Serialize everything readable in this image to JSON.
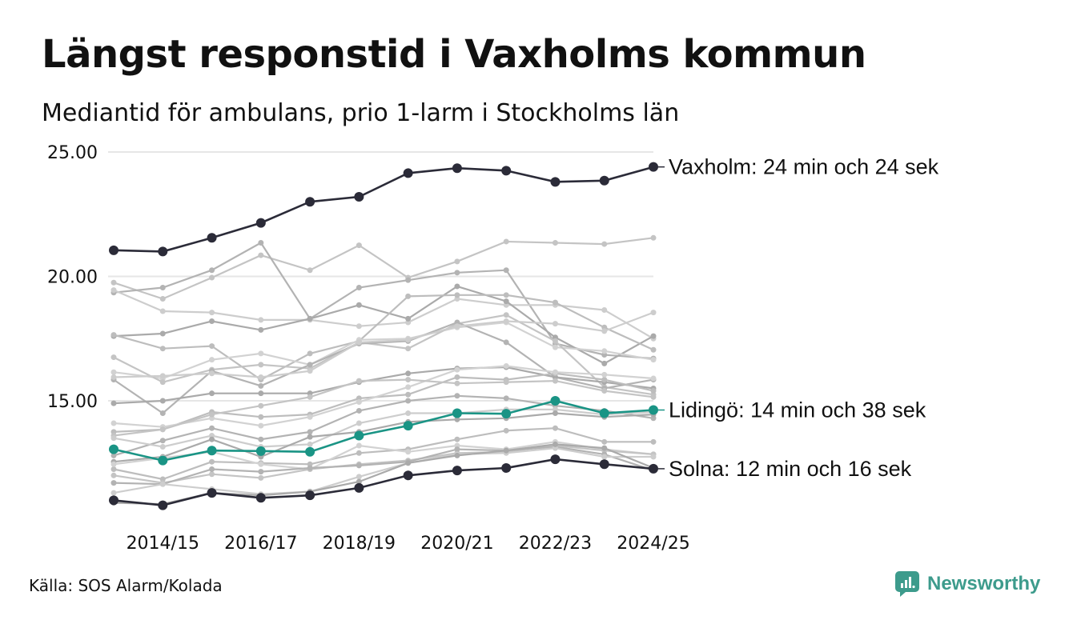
{
  "title": "Längst responstid i Vaxholms kommun",
  "subtitle": "Mediantid för ambulans, prio 1-larm i Stockholms län",
  "source": "Källa: SOS Alarm/Kolada",
  "brand": {
    "name": "Newsworthy",
    "icon": "newsworthy-logo-icon",
    "color": "#3d9b8c"
  },
  "colors": {
    "highlight_dark": "#2b2b38",
    "highlight_teal": "#1a9485",
    "grid": "#e6e6e6"
  },
  "chart_data": {
    "type": "line",
    "title": "Längst responstid i Vaxholms kommun",
    "subtitle": "Mediantid för ambulans, prio 1-larm i Stockholms län",
    "xlabel": "",
    "ylabel": "",
    "x": [
      "2013/14",
      "2014/15",
      "2015/16",
      "2016/17",
      "2017/18",
      "2018/19",
      "2019/20",
      "2020/21",
      "2021/22",
      "2022/23",
      "2023/24",
      "2024/25"
    ],
    "x_tick_labels": [
      "2014/15",
      "2016/17",
      "2018/19",
      "2020/21",
      "2022/23",
      "2024/25"
    ],
    "y_tick_labels": [
      "25.00",
      "20.00",
      "15.00"
    ],
    "y_ticks": [
      25,
      20,
      15
    ],
    "ylim": [
      10.3,
      25.5
    ],
    "grid": true,
    "highlight_series": [
      {
        "name": "Vaxholm",
        "label": "Vaxholm: 24 min och 24 sek",
        "color": "#2b2b38",
        "values": [
          21.05,
          21.0,
          21.55,
          22.15,
          23.0,
          23.2,
          24.15,
          24.35,
          24.25,
          23.8,
          23.85,
          24.4
        ]
      },
      {
        "name": "Lidingö",
        "label": "Lidingö: 14 min och 38 sek",
        "color": "#1a9485",
        "values": [
          13.05,
          12.6,
          13.0,
          12.98,
          12.95,
          13.6,
          14.0,
          14.5,
          14.48,
          15.0,
          14.5,
          14.63
        ]
      },
      {
        "name": "Solna",
        "label": "Solna: 12 min och 16 sek",
        "color": "#2b2b38",
        "values": [
          11.0,
          10.8,
          11.3,
          11.1,
          11.2,
          11.5,
          12.0,
          12.2,
          12.3,
          12.65,
          12.45,
          12.27
        ]
      }
    ],
    "series": [
      {
        "values": [
          19.75,
          19.1,
          19.95,
          20.85,
          20.25,
          21.25,
          19.95,
          20.6,
          21.4,
          21.35,
          21.3,
          21.55
        ]
      },
      {
        "values": [
          19.35,
          19.55,
          20.25,
          21.35,
          18.3,
          19.55,
          19.85,
          20.15,
          20.25,
          17.3,
          16.85,
          16.7
        ]
      },
      {
        "values": [
          19.45,
          18.6,
          18.55,
          18.25,
          18.25,
          18.0,
          18.15,
          19.1,
          18.85,
          18.85,
          18.65,
          17.5
        ]
      },
      {
        "values": [
          17.6,
          17.7,
          18.2,
          17.85,
          18.3,
          18.85,
          18.3,
          19.6,
          19.0,
          17.55,
          16.5,
          17.6
        ]
      },
      {
        "values": [
          17.65,
          17.1,
          17.2,
          15.85,
          16.9,
          17.4,
          19.2,
          19.25,
          19.25,
          18.95,
          17.95,
          17.05
        ]
      },
      {
        "values": [
          16.15,
          15.9,
          16.65,
          16.9,
          16.45,
          17.45,
          17.5,
          17.95,
          18.15,
          17.15,
          17.0,
          16.65
        ]
      },
      {
        "values": [
          16.75,
          15.75,
          16.25,
          16.45,
          16.3,
          17.35,
          17.1,
          18.1,
          18.45,
          17.4,
          15.55,
          15.25
        ]
      },
      {
        "values": [
          15.85,
          14.5,
          16.2,
          15.6,
          16.45,
          17.3,
          17.4,
          18.15,
          17.35,
          15.95,
          15.5,
          15.85
        ]
      },
      {
        "values": [
          15.95,
          16.0,
          16.1,
          15.95,
          16.2,
          17.35,
          17.45,
          18.0,
          18.2,
          18.1,
          17.8,
          18.55
        ]
      },
      {
        "values": [
          14.9,
          15.0,
          15.3,
          15.3,
          15.3,
          15.75,
          16.1,
          16.3,
          16.35,
          15.95,
          15.75,
          15.5
        ]
      },
      {
        "values": [
          13.75,
          13.85,
          14.55,
          14.35,
          14.45,
          15.1,
          15.25,
          15.95,
          15.85,
          16.1,
          15.85,
          15.4
        ]
      },
      {
        "values": [
          14.1,
          13.95,
          14.3,
          14.0,
          14.35,
          14.95,
          15.55,
          16.25,
          16.4,
          16.15,
          16.05,
          15.9
        ]
      },
      {
        "values": [
          13.6,
          13.85,
          14.45,
          14.8,
          15.15,
          15.8,
          15.85,
          15.7,
          15.75,
          15.8,
          15.4,
          15.15
        ]
      },
      {
        "values": [
          12.8,
          13.4,
          13.9,
          13.45,
          13.75,
          14.6,
          15.0,
          15.2,
          15.1,
          14.8,
          14.6,
          14.3
        ]
      },
      {
        "values": [
          13.5,
          13.15,
          13.6,
          13.15,
          13.25,
          14.1,
          14.5,
          14.5,
          14.65,
          14.65,
          14.45,
          14.55
        ]
      },
      {
        "values": [
          12.55,
          12.75,
          13.45,
          12.75,
          13.55,
          13.75,
          14.15,
          14.25,
          14.3,
          14.5,
          14.35,
          14.45
        ]
      },
      {
        "values": [
          12.25,
          11.85,
          12.55,
          12.5,
          12.45,
          12.9,
          13.05,
          13.45,
          13.8,
          13.9,
          13.35,
          13.35
        ]
      },
      {
        "values": [
          12.45,
          12.7,
          12.95,
          12.45,
          12.25,
          13.2,
          12.95,
          13.2,
          13.05,
          13.35,
          13.05,
          12.85
        ]
      },
      {
        "values": [
          12.0,
          11.7,
          12.05,
          11.9,
          12.25,
          12.45,
          12.6,
          12.9,
          12.95,
          13.2,
          13.0,
          12.85
        ]
      },
      {
        "values": [
          11.7,
          11.65,
          12.25,
          12.15,
          12.3,
          12.4,
          12.55,
          13.05,
          13.0,
          13.15,
          12.85,
          12.2
        ]
      },
      {
        "values": [
          11.3,
          11.65,
          11.45,
          11.25,
          11.35,
          11.95,
          12.5,
          12.85,
          12.9,
          13.1,
          12.75,
          12.75
        ]
      },
      {
        "values": [
          10.9,
          10.85,
          11.3,
          11.2,
          11.35,
          11.75,
          12.5,
          12.8,
          13.0,
          13.25,
          13.1,
          12.3
        ]
      }
    ]
  }
}
